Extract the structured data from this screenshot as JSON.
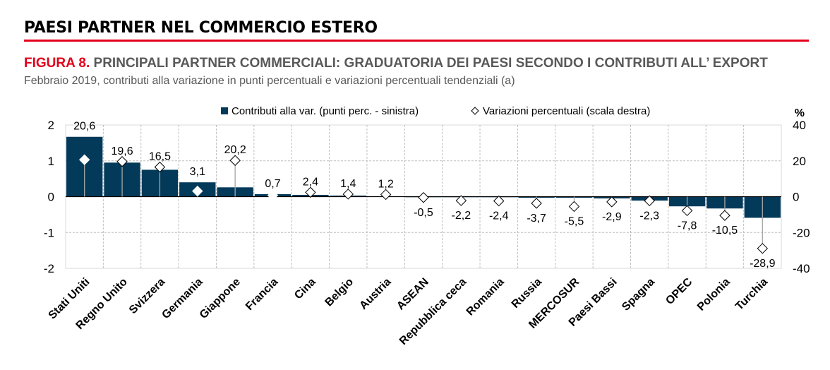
{
  "header": {
    "section_title": "PAESI PARTNER NEL COMMERCIO ESTERO"
  },
  "chart_data": {
    "type": "bar",
    "title_prefix": "FIGURA 8.",
    "title": "PRINCIPALI PARTNER COMMERCIALI: GRADUATORIA DEI PAESI SECONDO I CONTRIBUTI ALL’ EXPORT",
    "subtitle": "Febbraio 2019, contributi alla variazione in punti percentuali e variazioni percentuali tendenziali (a)",
    "right_axis_unit": "%",
    "categories": [
      "Stati Uniti",
      "Regno Unito",
      "Svizzera",
      "Germania",
      "Giappone",
      "Francia",
      "Cina",
      "Belgio",
      "Austria",
      "ASEAN",
      "Repubblica ceca",
      "Romania",
      "Russia",
      "MERCOSUR",
      "Paesi Bassi",
      "Spagna",
      "OPEC",
      "Polonia",
      "Turchia"
    ],
    "series": [
      {
        "name": "Contributi alla var. (punti perc. - sinistra)",
        "type": "bar",
        "axis": "left",
        "color": "#033a5a",
        "values": [
          1.67,
          0.95,
          0.75,
          0.4,
          0.26,
          0.07,
          0.05,
          0.03,
          0.01,
          0.0,
          -0.01,
          -0.01,
          -0.03,
          -0.03,
          -0.05,
          -0.11,
          -0.27,
          -0.33,
          -0.59
        ]
      },
      {
        "name": "Variazioni percentuali (scala destra)",
        "type": "scatter",
        "axis": "right",
        "marker": "diamond",
        "values": [
          20.6,
          19.6,
          16.5,
          3.1,
          20.2,
          0.7,
          2.4,
          1.4,
          1.2,
          -0.5,
          -2.2,
          -2.4,
          -3.7,
          -5.5,
          -2.9,
          -2.3,
          -7.8,
          -10.5,
          -28.9
        ],
        "labels": [
          "20,6",
          "19,6",
          "16,5",
          "3,1",
          "20,2",
          "0,7",
          "2,4",
          "1,4",
          "1,2",
          "-0,5",
          "-2,2",
          "-2,4",
          "-3,7",
          "-5,5",
          "-2,9",
          "-2,3",
          "-7,8",
          "-10,5",
          "-28,9"
        ]
      }
    ],
    "left_ylim": [
      -2,
      2
    ],
    "left_ticks": [
      "2",
      "1",
      "0",
      "-1",
      "-2"
    ],
    "right_ylim": [
      -40,
      40
    ],
    "right_ticks": [
      "40",
      "20",
      "0",
      "-20",
      "-40"
    ],
    "grid": true,
    "legend": "top"
  }
}
